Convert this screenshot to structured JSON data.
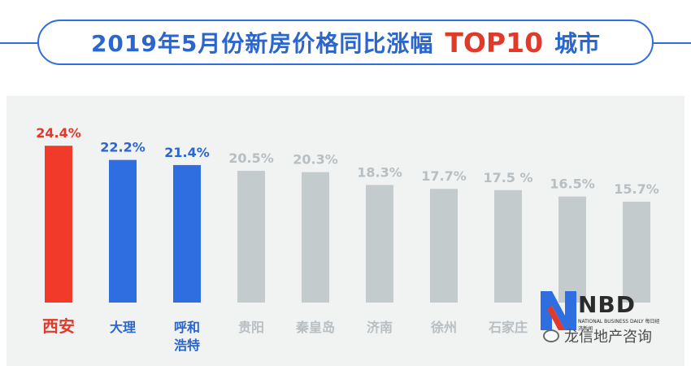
{
  "title": {
    "main": "2019年5月份新房价格同比涨幅",
    "accent": "TOP10",
    "suffix": "城市"
  },
  "chart_data": {
    "type": "bar",
    "categories": [
      "西安",
      "大理",
      "呼和浩特",
      "贵阳",
      "秦皇岛",
      "济南",
      "徐州",
      "石家庄",
      "",
      ""
    ],
    "values": [
      24.4,
      22.2,
      21.4,
      20.5,
      20.3,
      18.3,
      17.7,
      17.5,
      16.5,
      15.7
    ],
    "value_labels": [
      "24.4%",
      "22.2%",
      "21.4%",
      "20.5%",
      "20.3%",
      "18.3%",
      "17.7%",
      "17.5 %",
      "16.5%",
      "15.7%"
    ],
    "category_lines": [
      [
        "西安"
      ],
      [
        "大理"
      ],
      [
        "呼和",
        "浩特"
      ],
      [
        "贵阳"
      ],
      [
        "秦皇岛"
      ],
      [
        "济南"
      ],
      [
        "徐州"
      ],
      [
        "石家庄"
      ],
      [
        ""
      ],
      [
        ""
      ]
    ],
    "bar_colors": [
      "#f23a2a",
      "#2f6ee0",
      "#2f6ee0",
      "#c4cbcd",
      "#c4cbcd",
      "#c4cbcd",
      "#c4cbcd",
      "#c4cbcd",
      "#c4cbcd",
      "#c4cbcd"
    ],
    "label_colors": [
      "#e23a2a",
      "#2b66cf",
      "#2b66cf",
      "#b8bfc2",
      "#b8bfc2",
      "#b8bfc2",
      "#b8bfc2",
      "#b8bfc2",
      "#b8bfc2",
      "#b8bfc2"
    ],
    "xlabel": "",
    "ylabel": "",
    "grid": false,
    "legend": "none"
  },
  "logo": {
    "text": "NBD",
    "subtext": "NATIONAL BUSINESS DAILY 每日经济新闻"
  },
  "watermark": {
    "text": "龙信地产咨询",
    "icon": "wechat-icon"
  }
}
